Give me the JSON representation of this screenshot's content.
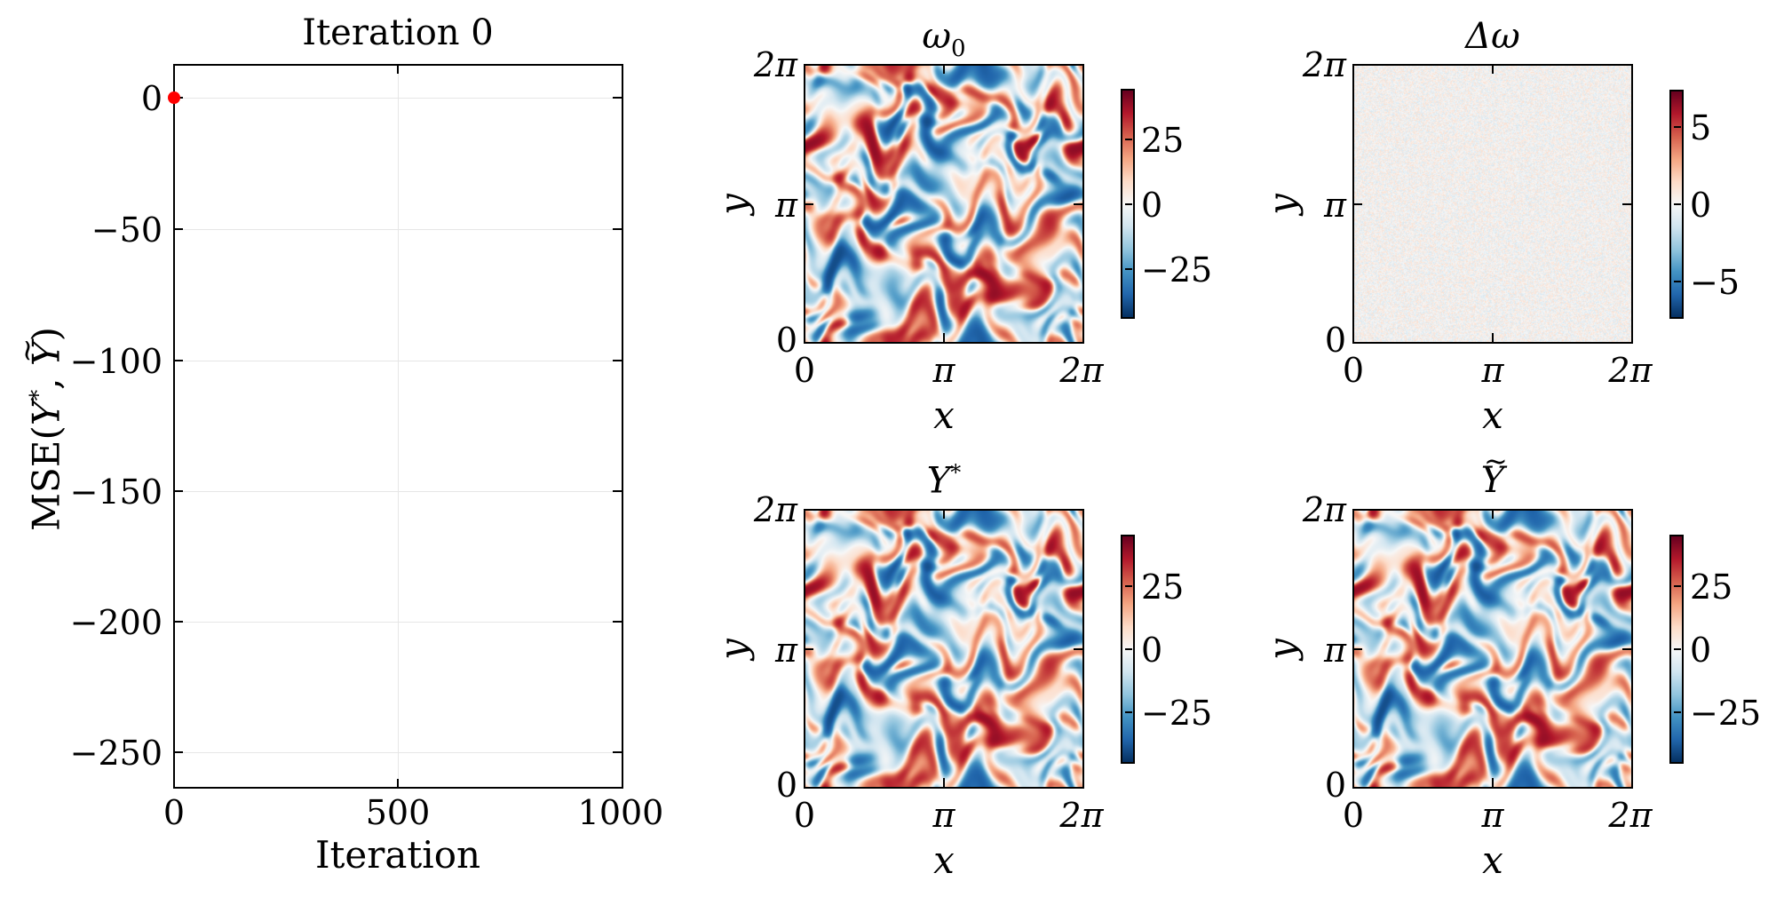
{
  "line_plot": {
    "title": "Iteration 0",
    "xlabel": "Iteration",
    "ylabel_prefix": "MSE(",
    "ylabel_y1": "Y",
    "ylabel_star": "*",
    "ylabel_sep": ", ",
    "ylabel_y2": "Y",
    "ylabel_suffix": ")",
    "xticks": [
      "0",
      "500",
      "1000"
    ],
    "yticks": [
      "0",
      "−50",
      "−100",
      "−150",
      "−200",
      "−250"
    ],
    "marker_color": "#ff0000"
  },
  "panels": [
    {
      "id": "omega0",
      "title_sym": "ω",
      "title_sub": "0",
      "xlabel": "x",
      "ylabel": "y",
      "xticks": [
        "0",
        "π",
        "2π"
      ],
      "yticks": [
        "0",
        "π",
        "2π"
      ],
      "cbar_ticks": [
        "25",
        "0",
        "−25"
      ]
    },
    {
      "id": "delta-omega",
      "title_sym": "Δω",
      "xlabel": "x",
      "ylabel": "y",
      "xticks": [
        "0",
        "π",
        "2π"
      ],
      "yticks": [
        "0",
        "π",
        "2π"
      ],
      "cbar_ticks": [
        "5",
        "0",
        "−5"
      ]
    },
    {
      "id": "y-star",
      "title_sym": "Y",
      "title_sup": "*",
      "xlabel": "x",
      "ylabel": "y",
      "xticks": [
        "0",
        "π",
        "2π"
      ],
      "yticks": [
        "0",
        "π",
        "2π"
      ],
      "cbar_ticks": [
        "25",
        "0",
        "−25"
      ]
    },
    {
      "id": "y-tilde",
      "title_sym": "Y",
      "xlabel": "x",
      "ylabel": "y",
      "xticks": [
        "0",
        "π",
        "2π"
      ],
      "yticks": [
        "0",
        "π",
        "2π"
      ],
      "cbar_ticks": [
        "25",
        "0",
        "−25"
      ]
    }
  ],
  "colormap": [
    "#053061",
    "#2166ac",
    "#4393c3",
    "#92c5de",
    "#d1e5f0",
    "#f7f7f7",
    "#fddbc7",
    "#f4a582",
    "#d6604d",
    "#b2182b",
    "#67001f"
  ],
  "chart_data": [
    {
      "type": "scatter",
      "title": "Iteration 0",
      "xlabel": "Iteration",
      "ylabel": "MSE(Y*, Ỹ)",
      "x": [
        0
      ],
      "y": [
        0
      ],
      "xlim": [
        0,
        1000
      ],
      "ylim": [
        -262.5,
        12.5
      ],
      "xticks": [
        0,
        500,
        1000
      ],
      "yticks": [
        0,
        -50,
        -100,
        -150,
        -200,
        -250
      ],
      "grid": true,
      "marker_color": "#ff0000"
    },
    {
      "type": "heatmap",
      "title": "ω₀",
      "xlabel": "x",
      "ylabel": "y",
      "xlim": [
        0,
        6.283
      ],
      "ylim": [
        0,
        6.283
      ],
      "xticks": [
        "0",
        "π",
        "2π"
      ],
      "yticks": [
        "0",
        "π",
        "2π"
      ],
      "colormap": "RdBu_r",
      "colorbar": {
        "range": [
          -44,
          44
        ],
        "ticks": [
          -25,
          0,
          25
        ]
      },
      "description": "turbulent 2D vorticity field, many mixed red/blue vortices"
    },
    {
      "type": "heatmap",
      "title": "Δω",
      "xlabel": "x",
      "ylabel": "y",
      "xlim": [
        0,
        6.283
      ],
      "ylim": [
        0,
        6.283
      ],
      "xticks": [
        "0",
        "π",
        "2π"
      ],
      "yticks": [
        "0",
        "π",
        "2π"
      ],
      "colormap": "RdBu_r",
      "colorbar": {
        "range": [
          -7.5,
          7.5
        ],
        "ticks": [
          -5,
          0,
          5
        ]
      },
      "description": "low-amplitude uniform random noise"
    },
    {
      "type": "heatmap",
      "title": "Y*",
      "xlabel": "x",
      "ylabel": "y",
      "xlim": [
        0,
        6.283
      ],
      "ylim": [
        0,
        6.283
      ],
      "xticks": [
        "0",
        "π",
        "2π"
      ],
      "yticks": [
        "0",
        "π",
        "2π"
      ],
      "colormap": "RdBu_r",
      "colorbar": {
        "range": [
          -44,
          44
        ],
        "ticks": [
          -25,
          0,
          25
        ]
      },
      "description": "target turbulent vorticity field"
    },
    {
      "type": "heatmap",
      "title": "Ỹ",
      "xlabel": "x",
      "ylabel": "y",
      "xlim": [
        0,
        6.283
      ],
      "ylim": [
        0,
        6.283
      ],
      "xticks": [
        "0",
        "π",
        "2π"
      ],
      "yticks": [
        "0",
        "π",
        "2π"
      ],
      "colormap": "RdBu_r",
      "colorbar": {
        "range": [
          -45,
          45
        ],
        "ticks": [
          -25,
          0,
          25
        ]
      },
      "description": "predicted turbulent vorticity field, visually similar to Y*"
    }
  ]
}
